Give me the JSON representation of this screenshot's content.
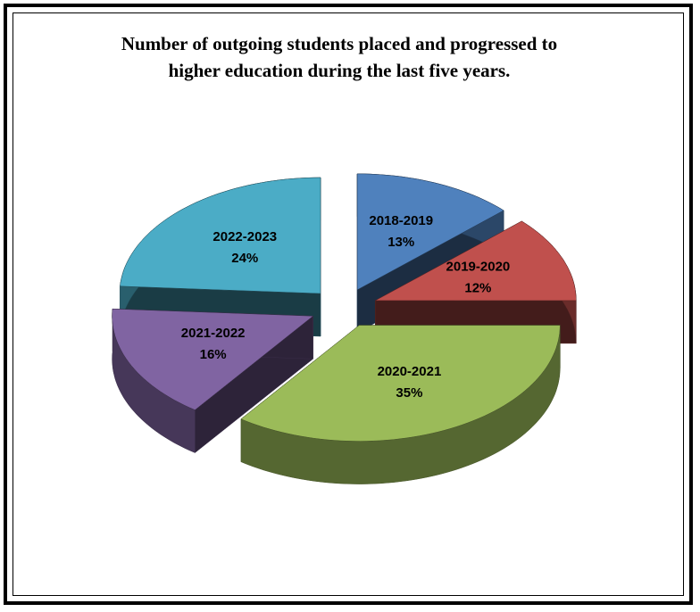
{
  "chart_data": {
    "type": "pie",
    "title": "Number of outgoing students placed and progressed to higher education during the last five years.",
    "categories": [
      "2018-2019",
      "2019-2020",
      "2020-2021",
      "2021-2022",
      "2022-2023"
    ],
    "values": [
      13,
      12,
      35,
      16,
      24
    ],
    "value_labels": [
      "13%",
      "12%",
      "35%",
      "16%",
      "24%"
    ],
    "colors": [
      "#4f81bd",
      "#c0504d",
      "#9bbb59",
      "#8064a2",
      "#4bacc6"
    ]
  }
}
